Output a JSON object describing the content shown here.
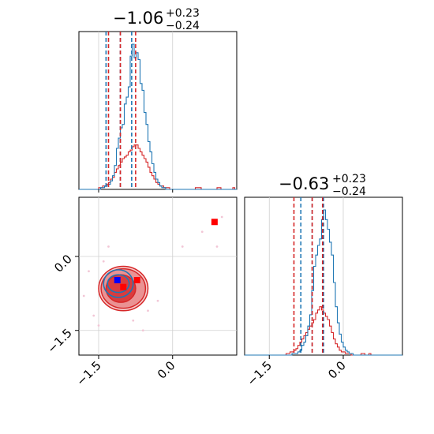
{
  "chart_data": {
    "type": "corner",
    "parameters": [
      {
        "title": {
          "median": "−1.06",
          "plus": "+0.23",
          "minus": "−0.24"
        },
        "range": [
          -1.9,
          1.3
        ],
        "ticks": [
          -1.5,
          0.0
        ],
        "tick_labels": [
          "−1.5",
          "0.0"
        ]
      },
      {
        "title": {
          "median": "−0.63",
          "plus": "+0.23",
          "minus": "−0.24"
        },
        "range": [
          -2.0,
          1.2
        ],
        "ticks": [
          -1.5,
          0.0
        ],
        "tick_labels": [
          "−1.5",
          "0.0"
        ]
      }
    ],
    "grid": true,
    "series": [
      {
        "color": "#1f77b4",
        "quantiles_p1": [
          -1.35,
          -1.06,
          -0.83
        ],
        "quantiles_p2": [
          -0.86,
          -0.63,
          -0.4
        ],
        "hist_p1": {
          "start": -1.9,
          "bin_width": 0.04,
          "counts": [
            0,
            0,
            0,
            0,
            0,
            0,
            0,
            0,
            0,
            0,
            0,
            1,
            1,
            2,
            2,
            3,
            5,
            8,
            14,
            24,
            30,
            36,
            38,
            50,
            54,
            60,
            78,
            85,
            77,
            80,
            76,
            62,
            58,
            45,
            38,
            28,
            22,
            15,
            10,
            6,
            4,
            2,
            1,
            1,
            0,
            0,
            0,
            0,
            0,
            0,
            0,
            0,
            0,
            0,
            0,
            0,
            0,
            0,
            0,
            0,
            0,
            0,
            0,
            0,
            0,
            0,
            0,
            0,
            0,
            0,
            0,
            0,
            0,
            0,
            0,
            0,
            0,
            0,
            0,
            0
          ]
        },
        "hist_p2": {
          "start": -2.0,
          "bin_width": 0.04,
          "counts": [
            0,
            0,
            0,
            0,
            0,
            0,
            0,
            0,
            0,
            0,
            0,
            0,
            0,
            0,
            0,
            0,
            0,
            0,
            0,
            0,
            0,
            0,
            0,
            0,
            1,
            1,
            1,
            2,
            3,
            6,
            8,
            12,
            18,
            25,
            40,
            55,
            62,
            68,
            72,
            84,
            90,
            84,
            78,
            70,
            62,
            45,
            30,
            20,
            13,
            8,
            5,
            3,
            2,
            1,
            1,
            0,
            0,
            0,
            0,
            0,
            0,
            0,
            0,
            0,
            0,
            0,
            0,
            0,
            0,
            0,
            0,
            0,
            0,
            0,
            0,
            0,
            0,
            0,
            0,
            0
          ]
        },
        "contours": [
          {
            "level": "1-sigma",
            "cx": -1.1,
            "cy": -0.55,
            "rx": 0.22,
            "ry": 0.18
          },
          {
            "level": "2-sigma",
            "cx": -1.1,
            "cy": -0.55,
            "rx": 0.3,
            "ry": 0.28
          }
        ],
        "marker": {
          "x": -1.12,
          "y": -0.48
        }
      },
      {
        "color": "#d62728",
        "quantiles_p1": [
          -1.3,
          -1.06,
          -0.75
        ],
        "quantiles_p2": [
          -1.0,
          -0.63,
          -0.42
        ],
        "hist_p1": {
          "start": -1.9,
          "bin_width": 0.04,
          "counts": [
            0,
            0,
            0,
            0,
            0,
            0,
            0,
            0,
            0,
            0,
            1,
            1,
            2,
            2,
            3,
            4,
            6,
            7,
            10,
            12,
            14,
            16,
            18,
            19,
            20,
            22,
            23,
            25,
            26,
            26,
            24,
            22,
            20,
            18,
            16,
            13,
            10,
            8,
            6,
            4,
            3,
            2,
            2,
            1,
            1,
            1,
            0,
            0,
            0,
            0,
            0,
            0,
            0,
            0,
            0,
            0,
            0,
            0,
            0,
            1,
            1,
            1,
            0,
            0,
            0,
            0,
            0,
            0,
            0,
            0,
            1,
            1,
            0,
            0,
            0,
            0,
            0,
            0,
            1,
            0
          ]
        },
        "hist_p2": {
          "start": -2.0,
          "bin_width": 0.04,
          "counts": [
            0,
            0,
            0,
            0,
            0,
            0,
            0,
            0,
            0,
            0,
            0,
            0,
            0,
            0,
            0,
            0,
            0,
            0,
            0,
            0,
            0,
            1,
            1,
            2,
            2,
            3,
            4,
            6,
            8,
            10,
            12,
            14,
            16,
            18,
            20,
            22,
            26,
            28,
            30,
            28,
            26,
            24,
            22,
            18,
            14,
            10,
            7,
            5,
            3,
            2,
            2,
            1,
            1,
            1,
            0,
            0,
            0,
            0,
            0,
            1,
            1,
            0,
            0,
            1,
            0,
            0,
            0,
            0,
            0,
            0,
            0,
            0,
            0,
            0,
            0,
            0,
            0,
            0,
            0,
            0
          ]
        },
        "contours": [
          {
            "level": "1-sigma",
            "cx": -1.05,
            "cy": -0.65,
            "rx": 0.3,
            "ry": 0.28
          },
          {
            "level": "2-sigma",
            "cx": -1.0,
            "cy": -0.65,
            "rx": 0.45,
            "ry": 0.4
          },
          {
            "level": "3-sigma",
            "cx": -1.0,
            "cy": -0.65,
            "rx": 0.5,
            "ry": 0.45
          }
        ],
        "markers": [
          {
            "x": -1.0,
            "y": -0.62
          },
          {
            "x": -0.72,
            "y": -0.48
          },
          {
            "x": 0.85,
            "y": 0.7
          }
        ]
      }
    ],
    "truth_line_colors": {
      "blue": "#1f77b4",
      "red": "#d62728"
    }
  }
}
